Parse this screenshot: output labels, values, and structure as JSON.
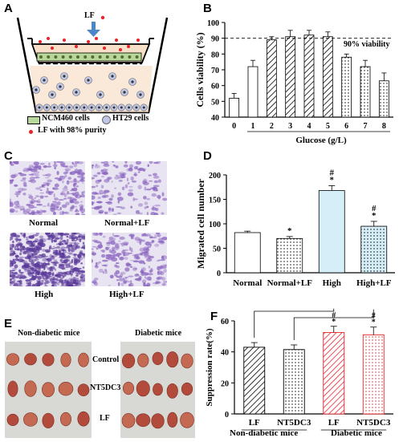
{
  "panels": {
    "A": {
      "letter": "A",
      "lf_label": "LF",
      "legend": [
        {
          "label": "NCM460 cells",
          "symbol": "ncm460-rect"
        },
        {
          "label": "HT29 cells",
          "symbol": "ht29-cell"
        },
        {
          "label": "LF with 98% purity",
          "symbol": "lf-dot"
        }
      ],
      "colors": {
        "lf": "#e8232a",
        "ncm460": "#b7d89a",
        "ht29": "#bfc6e6",
        "insert": "#f8e0c8",
        "arrow": "#4c86c6"
      }
    },
    "B": {
      "letter": "B",
      "threshold_label": "90% viability"
    },
    "C": {
      "letter": "C",
      "images": [
        {
          "label": "Normal"
        },
        {
          "label": "Normal+LF"
        },
        {
          "label": "High"
        },
        {
          "label": "High+LF"
        }
      ]
    },
    "D": {
      "letter": "D"
    },
    "E": {
      "letter": "E",
      "groups": [
        "Non-diabetic mice",
        "Diabetic mice"
      ],
      "rows": [
        "Control",
        "NT5DC3",
        "LF"
      ]
    },
    "F": {
      "letter": "F",
      "group_labels": [
        "Non-diabetic mice",
        "Diabetic mice"
      ]
    }
  },
  "chart_data": [
    {
      "id": "B",
      "type": "bar",
      "categories": [
        "0",
        "1",
        "2",
        "3",
        "4",
        "5",
        "6",
        "7",
        "8"
      ],
      "values": [
        52,
        72,
        89,
        91,
        92,
        91,
        78,
        72,
        63
      ],
      "errors": [
        3,
        4,
        2,
        4,
        3,
        3,
        2,
        4,
        5
      ],
      "patterns": [
        "plain",
        "plain",
        "hatch",
        "hatch",
        "hatch",
        "hatch",
        "dots",
        "dots",
        "dots"
      ],
      "xlabel": "Glucose (g/L)",
      "ylabel": "Cells viability (%)",
      "ylim": [
        40,
        100
      ],
      "yticks": [
        40,
        50,
        60,
        70,
        80,
        90,
        100
      ],
      "reference_line": 90,
      "annotation": "90% viability"
    },
    {
      "id": "D",
      "type": "bar",
      "categories": [
        "Normal",
        "Normal+LF",
        "High",
        "High+LF"
      ],
      "values": [
        82,
        70,
        168,
        95
      ],
      "errors": [
        3,
        4,
        10,
        10
      ],
      "marks": [
        "",
        "*",
        "#\n*",
        "#\n*"
      ],
      "fills": [
        "#ffffff",
        "#ffffff",
        "#d6eef7",
        "#d6eef7"
      ],
      "patterns": [
        "plain",
        "dots",
        "plain",
        "dots"
      ],
      "xlabel": "",
      "ylabel": "Migrated cell number",
      "ylim": [
        0,
        200
      ],
      "yticks": [
        0,
        50,
        100,
        150,
        200
      ]
    },
    {
      "id": "F",
      "type": "bar",
      "categories": [
        "LF",
        "NT5DC3",
        "LF",
        "NT5DC3"
      ],
      "values": [
        43,
        41.5,
        52.5,
        51
      ],
      "errors": [
        3,
        3,
        4,
        5
      ],
      "marks": [
        "",
        "",
        "#\n*",
        "#\n*"
      ],
      "colors": [
        "#000000",
        "#000000",
        "#e8232a",
        "#e8232a"
      ],
      "patterns": [
        "hatch",
        "dots",
        "hatch",
        "dots"
      ],
      "xlabel": "",
      "ylabel": "Suppression rate(%)",
      "ylim": [
        0,
        60
      ],
      "yticks": [
        0,
        20,
        40,
        60
      ]
    }
  ]
}
